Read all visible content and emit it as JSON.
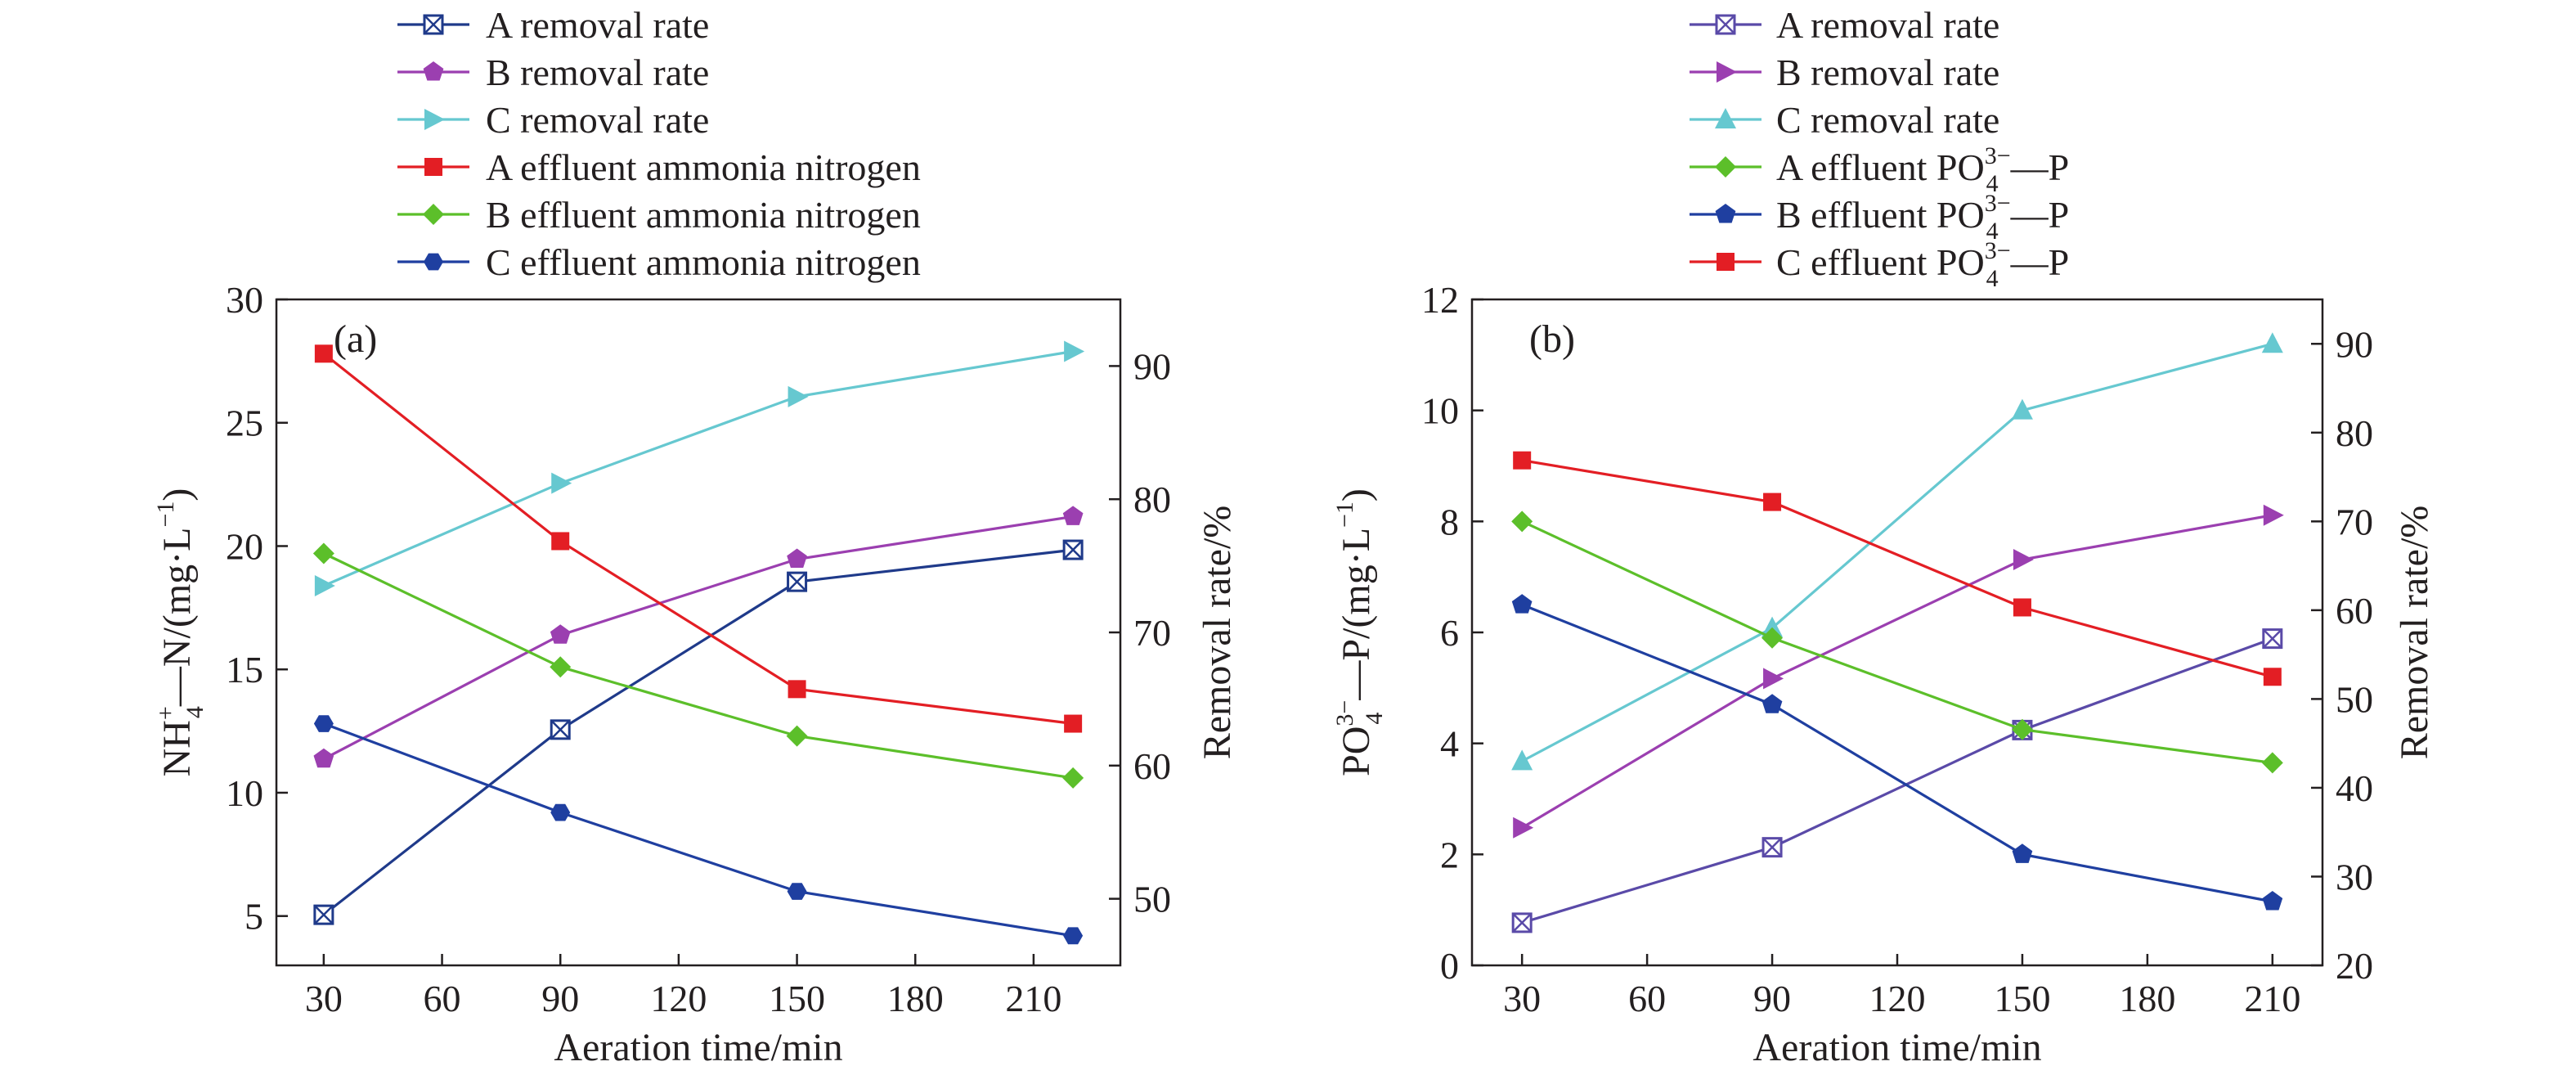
{
  "chart_data": [
    {
      "type": "line",
      "panel_label": "(a)",
      "xlabel": "Aeration time/min",
      "ylabel_left_parts": [
        "NH",
        "+",
        "4",
        "—N/(mg·L",
        "−1",
        ")"
      ],
      "ylabel_right": "Removal rate/%",
      "xlim": [
        18,
        232
      ],
      "xticks": [
        30,
        60,
        90,
        120,
        150,
        180,
        210
      ],
      "x_tick_labels": [
        "30",
        "60",
        "90",
        "120",
        "150",
        "180",
        "210"
      ],
      "ylim_left": [
        3,
        30
      ],
      "yticks_left": [
        5,
        10,
        15,
        20,
        25,
        30
      ],
      "y_tick_labels_left": [
        "5",
        "10",
        "15",
        "20",
        "25",
        "30"
      ],
      "ylim_right": [
        45,
        95
      ],
      "yticks_right": [
        50,
        60,
        70,
        80,
        90
      ],
      "y_tick_labels_right": [
        "50",
        "60",
        "70",
        "80",
        "90"
      ],
      "x": [
        30,
        90,
        150,
        220
      ],
      "legend_position": "top-center",
      "series": [
        {
          "name": "A removal rate",
          "axis": "right",
          "color": "#1f3a8a",
          "marker": "square-x",
          "values": [
            48.8,
            62.7,
            73.8,
            76.2
          ]
        },
        {
          "name": "B removal rate",
          "axis": "right",
          "color": "#9b3fb0",
          "marker": "pentagon",
          "values": [
            60.5,
            69.8,
            75.5,
            78.7
          ]
        },
        {
          "name": "C removal rate",
          "axis": "right",
          "color": "#66c8d0",
          "marker": "triangle-right",
          "values": [
            73.5,
            81.2,
            87.7,
            91.1
          ]
        },
        {
          "name": "A effluent ammonia nitrogen",
          "axis": "left",
          "color": "#e31e24",
          "marker": "square",
          "values": [
            27.8,
            20.2,
            14.2,
            12.8
          ]
        },
        {
          "name": "B effluent ammonia nitrogen",
          "axis": "left",
          "color": "#5cbf2a",
          "marker": "diamond",
          "values": [
            19.7,
            15.1,
            12.3,
            10.6
          ]
        },
        {
          "name": "C effluent ammonia nitrogen",
          "axis": "left",
          "color": "#1f3fa0",
          "marker": "hexagon",
          "values": [
            12.8,
            9.2,
            6.0,
            4.2
          ]
        }
      ]
    },
    {
      "type": "line",
      "panel_label": "(b)",
      "xlabel": "Aeration time/min",
      "ylabel_left_parts": [
        "PO",
        "3−",
        "4",
        "—P/(mg·L",
        "−1",
        ")"
      ],
      "ylabel_right": "Removal rate/%",
      "xlim": [
        18,
        222
      ],
      "xticks": [
        30,
        60,
        90,
        120,
        150,
        180,
        210
      ],
      "x_tick_labels": [
        "30",
        "60",
        "90",
        "120",
        "150",
        "180",
        "210"
      ],
      "ylim_left": [
        0,
        12
      ],
      "yticks_left": [
        0,
        2,
        4,
        6,
        8,
        10,
        12
      ],
      "y_tick_labels_left": [
        "0",
        "2",
        "4",
        "6",
        "8",
        "10",
        "12"
      ],
      "ylim_right": [
        20,
        95
      ],
      "yticks_right": [
        20,
        30,
        40,
        50,
        60,
        70,
        80,
        90
      ],
      "y_tick_labels_right": [
        "20",
        "30",
        "40",
        "50",
        "60",
        "70",
        "80",
        "90"
      ],
      "x": [
        30,
        90,
        150,
        210
      ],
      "legend_position": "top-center",
      "series": [
        {
          "name": "A removal rate",
          "axis": "right",
          "color": "#5a4aa8",
          "marker": "square-x",
          "values": [
            24.8,
            33.3,
            46.5,
            56.8
          ]
        },
        {
          "name": "B removal rate",
          "axis": "right",
          "color": "#9b3fb0",
          "marker": "triangle-right",
          "values": [
            35.5,
            52.3,
            65.7,
            70.7
          ]
        },
        {
          "name": "C removal rate",
          "axis": "right",
          "color": "#66c8d0",
          "marker": "triangle-up",
          "values": [
            43.0,
            58.0,
            82.5,
            90.0
          ]
        },
        {
          "name": "A effluent PO—P",
          "name_parts": [
            "A effluent PO",
            "3−",
            "4",
            "—P"
          ],
          "axis": "left",
          "color": "#5cbf2a",
          "marker": "diamond",
          "values": [
            8.0,
            5.9,
            4.25,
            3.65
          ]
        },
        {
          "name": "B effluent PO—P",
          "name_parts": [
            "B effluent PO",
            "3−",
            "4",
            "—P"
          ],
          "axis": "left",
          "color": "#1f3fa0",
          "marker": "pentagon",
          "values": [
            6.5,
            4.7,
            2.0,
            1.15
          ]
        },
        {
          "name": "C effluent PO—P",
          "name_parts": [
            "C effluent PO",
            "3−",
            "4",
            "—P"
          ],
          "axis": "left",
          "color": "#e31e24",
          "marker": "square",
          "values": [
            9.1,
            8.35,
            6.45,
            5.2
          ]
        }
      ]
    }
  ]
}
